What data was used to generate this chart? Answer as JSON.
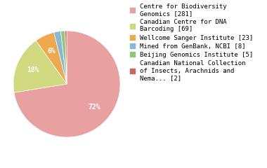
{
  "labels": [
    "Centre for Biodiversity\nGenomics [281]",
    "Canadian Centre for DNA\nBarcoding [69]",
    "Wellcome Sanger Institute [23]",
    "Mined from GenBank, NCBI [8]",
    "Beijing Genomics Institute [5]",
    "Canadian National Collection\nof Insects, Arachnids and\nNema... [2]"
  ],
  "values": [
    281,
    69,
    23,
    8,
    5,
    2
  ],
  "colors": [
    "#e8a0a0",
    "#d0d980",
    "#f0a84e",
    "#88b8d8",
    "#90c878",
    "#cc6655"
  ],
  "background_color": "#ffffff",
  "font_size": 6.5,
  "pct_distance": 0.68
}
